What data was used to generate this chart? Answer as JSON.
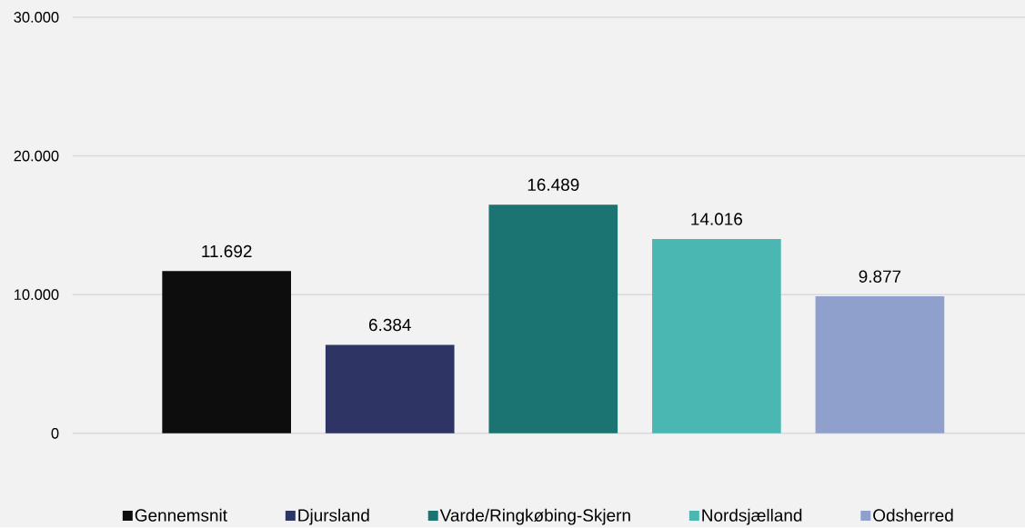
{
  "chart_data": {
    "type": "bar",
    "categories": [
      null,
      null,
      null,
      null,
      null
    ],
    "series": [
      {
        "name": "Gennemsnit",
        "color": "#0d0d0d",
        "values": [
          11692,
          null,
          null,
          null,
          null
        ],
        "value_labels": [
          "11.692",
          null,
          null,
          null,
          null
        ]
      },
      {
        "name": "Djursland",
        "color": "#2e3464",
        "values": [
          null,
          6384,
          null,
          null,
          null
        ],
        "value_labels": [
          null,
          "6.384",
          null,
          null,
          null
        ]
      },
      {
        "name": "Varde/Ringkøbing-Skjern",
        "color": "#1b7472",
        "values": [
          null,
          null,
          16489,
          null,
          null
        ],
        "value_labels": [
          null,
          null,
          "16.489",
          null,
          null
        ]
      },
      {
        "name": "Nordsjælland",
        "color": "#4ab7b2",
        "values": [
          null,
          null,
          null,
          14016,
          null
        ],
        "value_labels": [
          null,
          null,
          null,
          "14.016",
          null
        ]
      },
      {
        "name": "Odsherred",
        "color": "#8fa0cd",
        "values": [
          null,
          null,
          null,
          null,
          9877
        ],
        "value_labels": [
          null,
          null,
          null,
          null,
          "9.877"
        ]
      }
    ],
    "ylim": [
      0,
      30000
    ],
    "yticks": [
      0,
      {
        "value": 10000,
        "label": "10.000"
      },
      {
        "value": 20000,
        "label": "20.000"
      },
      {
        "value": 30000,
        "label": "30.000"
      }
    ],
    "grid": "y",
    "legend": "bottom"
  }
}
